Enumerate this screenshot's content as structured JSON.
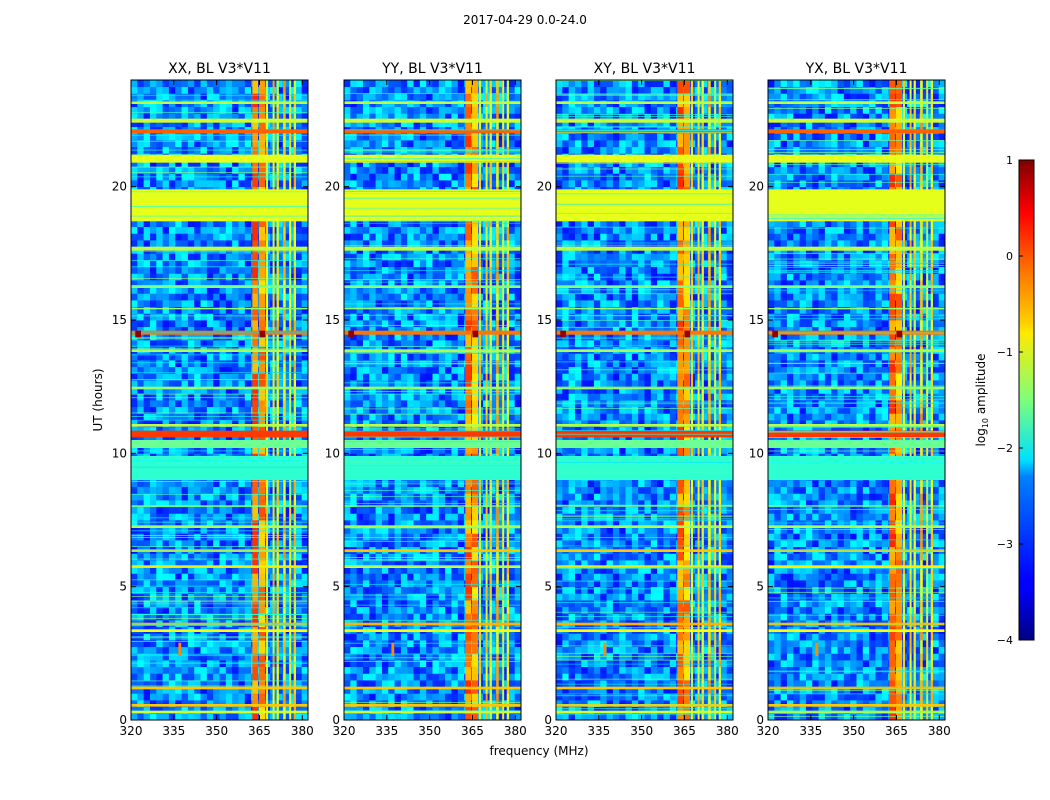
{
  "figure": {
    "suptitle": "2017-04-29 0.0-24.0",
    "xlabel": "frequency (MHz)",
    "ylabel": "UT (hours)",
    "colorbar": {
      "label_prefix": "log",
      "label_sub": "10",
      "label_suffix": " amplitude",
      "range": [
        -4,
        1
      ],
      "ticks": [
        1,
        0,
        -1,
        -2,
        -3,
        -4
      ],
      "tick_labels": [
        "1",
        "0",
        "−1",
        "−2",
        "−3",
        "−4"
      ],
      "colormap": "jet"
    }
  },
  "chart_data": [
    {
      "type": "heatmap",
      "title": "XX, BL V3*V11",
      "xlabel": "frequency (MHz)",
      "ylabel": "UT (hours)",
      "xlim": [
        320,
        382
      ],
      "ylim": [
        0,
        24
      ],
      "xticks": [
        320,
        335,
        350,
        365,
        380
      ],
      "yticks": [
        0,
        5,
        10,
        15,
        20
      ],
      "colormap": "jet",
      "zlabel": "log10 amplitude",
      "zlim": [
        -4,
        1
      ]
    },
    {
      "type": "heatmap",
      "title": "YY, BL V3*V11",
      "xlabel": "frequency (MHz)",
      "ylabel": "UT (hours)",
      "xlim": [
        320,
        382
      ],
      "ylim": [
        0,
        24
      ],
      "xticks": [
        320,
        335,
        350,
        365,
        380
      ],
      "yticks": [
        0,
        5,
        10,
        15,
        20
      ],
      "colormap": "jet",
      "zlabel": "log10 amplitude",
      "zlim": [
        -4,
        1
      ]
    },
    {
      "type": "heatmap",
      "title": "XY, BL V3*V11",
      "xlabel": "frequency (MHz)",
      "ylabel": "UT (hours)",
      "xlim": [
        320,
        382
      ],
      "ylim": [
        0,
        24
      ],
      "xticks": [
        320,
        335,
        350,
        365,
        380
      ],
      "yticks": [
        0,
        5,
        10,
        15,
        20
      ],
      "colormap": "jet",
      "zlabel": "log10 amplitude",
      "zlim": [
        -4,
        1
      ]
    },
    {
      "type": "heatmap",
      "title": "YX, BL V3*V11",
      "xlabel": "frequency (MHz)",
      "ylabel": "UT (hours)",
      "xlim": [
        320,
        382
      ],
      "ylim": [
        0,
        24
      ],
      "xticks": [
        320,
        335,
        350,
        365,
        380
      ],
      "yticks": [
        0,
        5,
        10,
        15,
        20
      ],
      "colormap": "jet",
      "zlabel": "log10 amplitude",
      "zlim": [
        -4,
        1
      ]
    }
  ]
}
